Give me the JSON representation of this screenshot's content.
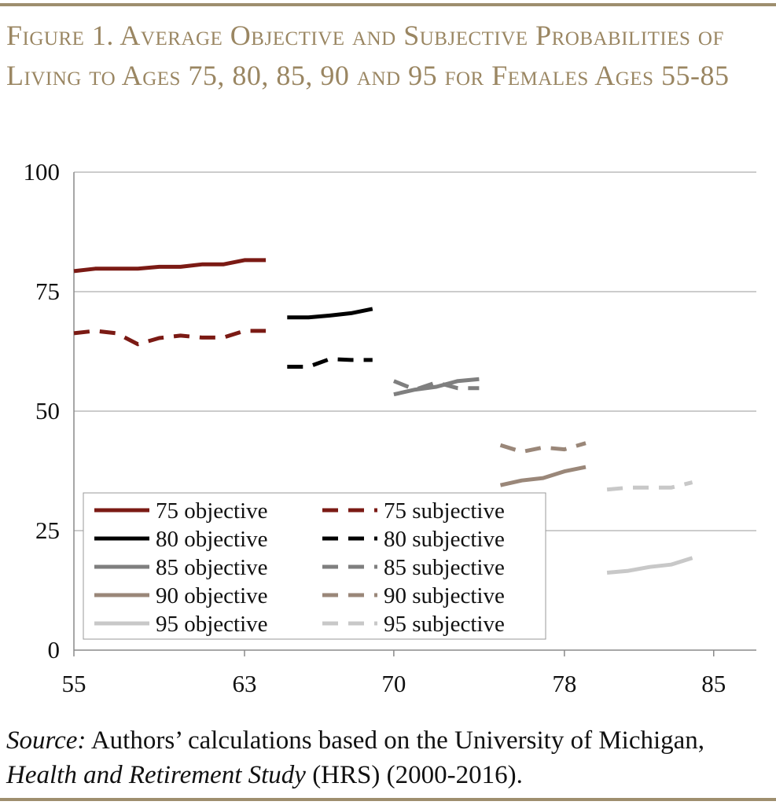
{
  "figure": {
    "title": "Figure 1. Average Objective and Subjective Probabilities of Living to Ages 75, 80, 85, 90 and 95 for Females Ages 55-85"
  },
  "source": {
    "label": "Source:",
    "text1": " Authors’ calculations based on the University of Michigan, ",
    "study": "Health and Retirement Study",
    "text2": " (HRS) (2000-2016)."
  },
  "chart_data": {
    "type": "line",
    "title": "",
    "xlabel": "",
    "ylabel": "",
    "xlim": [
      55,
      87
    ],
    "ylim": [
      0,
      100
    ],
    "xticks": [
      55,
      63,
      70,
      78,
      85
    ],
    "yticks": [
      0,
      25,
      50,
      75,
      100
    ],
    "grid": "horizontal",
    "legend_position": "bottom-left",
    "series": [
      {
        "name": "75 objective",
        "color": "#7b1a14",
        "dash": false,
        "x": [
          55,
          56,
          57,
          58,
          59,
          60,
          61,
          62,
          63,
          64
        ],
        "y": [
          79.3,
          79.8,
          79.8,
          79.8,
          80.2,
          80.2,
          80.7,
          80.7,
          81.6,
          81.6
        ]
      },
      {
        "name": "75 subjective",
        "color": "#7b1a14",
        "dash": true,
        "x": [
          55,
          56,
          57,
          58,
          59,
          60,
          61,
          62,
          63,
          64
        ],
        "y": [
          66.3,
          66.8,
          66.3,
          64.0,
          65.3,
          65.8,
          65.4,
          65.4,
          66.8,
          66.8
        ]
      },
      {
        "name": "80 objective",
        "color": "#000000",
        "dash": false,
        "x": [
          65,
          66,
          67,
          68,
          69
        ],
        "y": [
          69.6,
          69.6,
          70.0,
          70.5,
          71.4
        ]
      },
      {
        "name": "80 subjective",
        "color": "#000000",
        "dash": true,
        "x": [
          65,
          66,
          67,
          68,
          69
        ],
        "y": [
          59.3,
          59.3,
          60.9,
          60.7,
          60.7
        ]
      },
      {
        "name": "85 objective",
        "color": "#7f7f7f",
        "dash": false,
        "x": [
          70,
          71,
          72,
          73,
          74
        ],
        "y": [
          53.5,
          54.5,
          55.1,
          56.3,
          56.7
        ]
      },
      {
        "name": "85 subjective",
        "color": "#7f7f7f",
        "dash": true,
        "x": [
          70,
          71,
          72,
          73,
          74
        ],
        "y": [
          56.3,
          54.5,
          56.0,
          54.8,
          54.8
        ]
      },
      {
        "name": "90 objective",
        "color": "#9a8779",
        "dash": false,
        "x": [
          75,
          76,
          77,
          78,
          79
        ],
        "y": [
          34.5,
          35.5,
          36.0,
          37.4,
          38.3
        ]
      },
      {
        "name": "90 subjective",
        "color": "#9a8779",
        "dash": true,
        "x": [
          75,
          76,
          77,
          78,
          79
        ],
        "y": [
          42.9,
          41.5,
          42.4,
          42.0,
          43.3
        ]
      },
      {
        "name": "95 objective",
        "color": "#c8c8c8",
        "dash": false,
        "x": [
          80,
          81,
          82,
          83,
          84
        ],
        "y": [
          16.2,
          16.6,
          17.4,
          17.9,
          19.3
        ]
      },
      {
        "name": "95 subjective",
        "color": "#c8c8c8",
        "dash": true,
        "x": [
          80,
          81,
          82,
          83,
          84
        ],
        "y": [
          33.6,
          34.0,
          34.0,
          34.0,
          35.1
        ]
      }
    ]
  }
}
